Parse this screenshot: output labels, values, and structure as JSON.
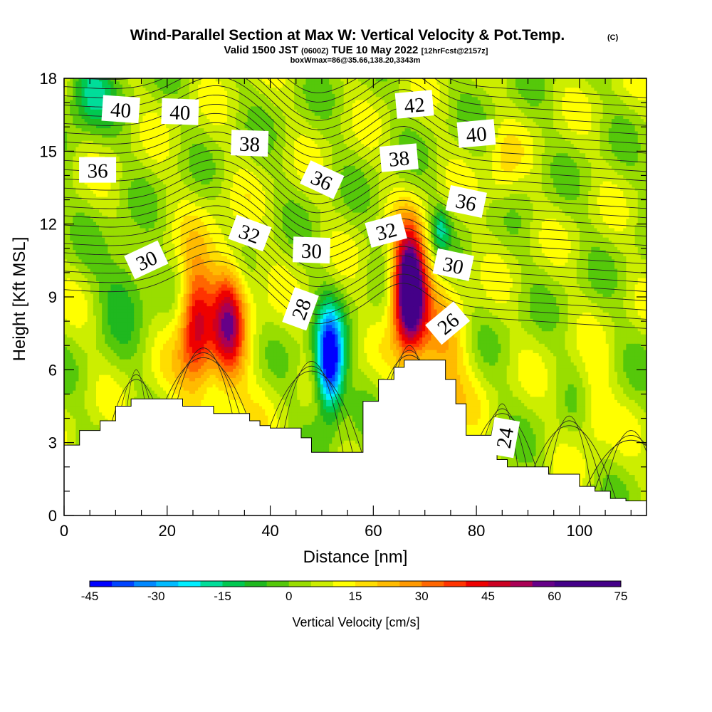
{
  "title": {
    "main": "Wind-Parallel Section at Max W: Vertical Velocity & Pot.Temp.",
    "copyright": "(C)",
    "valid_prefix": "Valid 1500 JST",
    "utc": "(0600Z)",
    "valid_date": "TUE 10 May 2022",
    "forecast": "[12hrFcst@2157z]",
    "box_info": "boxWmax=86@35.66,138.20,3343m"
  },
  "chart_data": {
    "type": "heatmap",
    "xlabel": "Distance [nm]",
    "ylabel": "Height [Kft MSL]",
    "xlim": [
      0,
      113
    ],
    "ylim": [
      0,
      18
    ],
    "x_ticks": [
      0,
      20,
      40,
      60,
      80,
      100
    ],
    "y_ticks": [
      0,
      3,
      6,
      9,
      12,
      15,
      18
    ],
    "colorbar": {
      "label": "Vertical Velocity [cm/s]",
      "min": -45,
      "max": 75,
      "step": 5,
      "tick_labels": [
        -45,
        -30,
        -15,
        0,
        15,
        30,
        45,
        60,
        75
      ],
      "colors": [
        "#0000ff",
        "#0044ff",
        "#0088ff",
        "#00bbff",
        "#00eeff",
        "#00dd99",
        "#00c850",
        "#1fb81f",
        "#55c80a",
        "#99dd00",
        "#ccee00",
        "#ffff00",
        "#ffdd00",
        "#ffbb00",
        "#ff9900",
        "#ff6600",
        "#ff3300",
        "#ee0000",
        "#cc0022",
        "#aa0055",
        "#660088",
        "#440088"
      ]
    },
    "vertical_velocity_features": [
      {
        "kind": "updraft",
        "x": 28,
        "height": 8.0,
        "max": 60
      },
      {
        "kind": "downdraft",
        "x": 51,
        "height": 6.3,
        "min": -42
      },
      {
        "kind": "updraft",
        "x": 67,
        "height": 9.2,
        "max": 75
      }
    ],
    "theta_contour_labels": [
      {
        "value": 40,
        "x": 11,
        "height": 16.7
      },
      {
        "value": 40,
        "x": 22.5,
        "height": 16.6
      },
      {
        "value": 42,
        "x": 68,
        "height": 16.9
      },
      {
        "value": 40,
        "x": 80,
        "height": 15.7
      },
      {
        "value": 38,
        "x": 36,
        "height": 15.3
      },
      {
        "value": 38,
        "x": 65,
        "height": 14.7
      },
      {
        "value": 36,
        "x": 6.5,
        "height": 14.2
      },
      {
        "value": 36,
        "x": 50,
        "height": 13.8
      },
      {
        "value": 36,
        "x": 78,
        "height": 12.9
      },
      {
        "value": 32,
        "x": 36,
        "height": 11.6
      },
      {
        "value": 32,
        "x": 62.5,
        "height": 11.7
      },
      {
        "value": 30,
        "x": 16,
        "height": 10.5
      },
      {
        "value": 30,
        "x": 48,
        "height": 10.9
      },
      {
        "value": 30,
        "x": 75.5,
        "height": 10.3
      },
      {
        "value": 28,
        "x": 46,
        "height": 8.5
      },
      {
        "value": 26,
        "x": 74.5,
        "height": 7.9
      },
      {
        "value": 24,
        "x": 85.5,
        "height": 3.2
      }
    ],
    "terrain": {
      "x": [
        0,
        3,
        5,
        7,
        10,
        13,
        17,
        20,
        23,
        26,
        29,
        33,
        36,
        38,
        40,
        43,
        46,
        48,
        53.5,
        58,
        61,
        64,
        66,
        68,
        70,
        72,
        74,
        76,
        78,
        81,
        84,
        86,
        89,
        91,
        94,
        97,
        100,
        103,
        106,
        109,
        113
      ],
      "height": [
        2.9,
        3.5,
        3.5,
        3.9,
        4.5,
        4.8,
        4.8,
        4.8,
        4.5,
        4.5,
        4.2,
        4.2,
        3.9,
        3.7,
        3.6,
        3.6,
        3.2,
        2.6,
        2.6,
        4.7,
        5.6,
        6.1,
        6.4,
        6.4,
        6.4,
        6.4,
        5.6,
        4.6,
        3.3,
        3.3,
        2.3,
        2.0,
        2.0,
        2.0,
        1.7,
        1.7,
        1.2,
        1.0,
        0.7,
        0.6,
        0.3
      ]
    }
  }
}
